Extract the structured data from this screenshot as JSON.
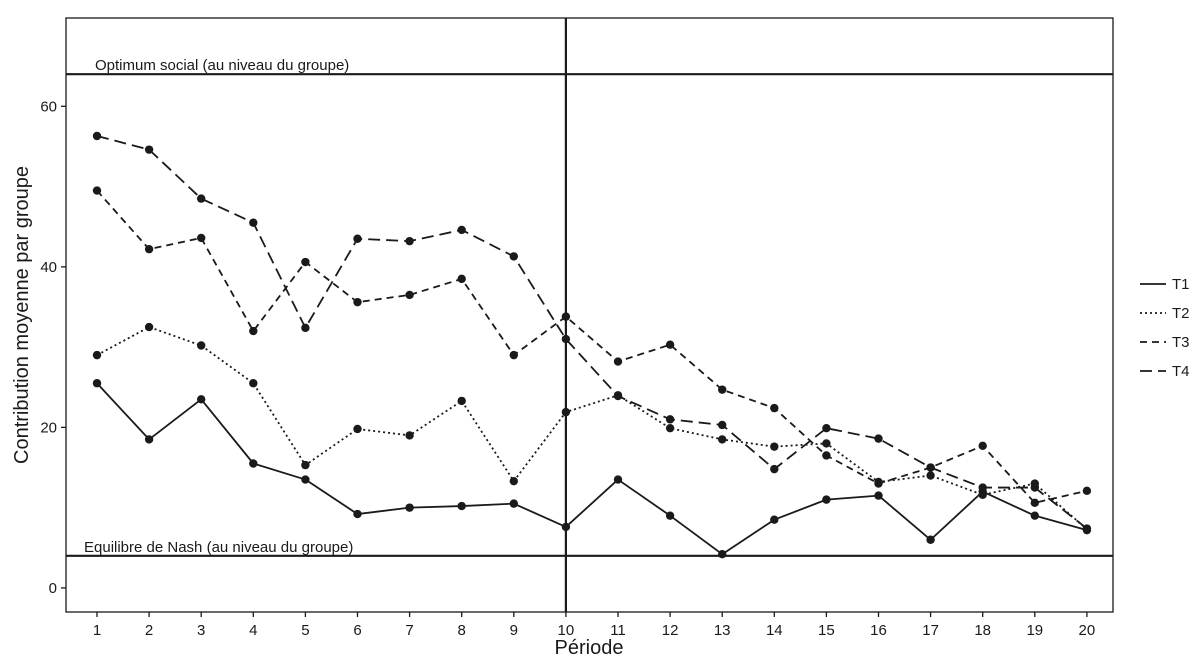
{
  "chart_data": {
    "type": "line",
    "xlabel": "Période",
    "ylabel": "Contribution moyenne par groupe",
    "categories": [
      "1",
      "2",
      "3",
      "4",
      "5",
      "6",
      "7",
      "8",
      "9",
      "10",
      "11",
      "12",
      "13",
      "14",
      "15",
      "16",
      "17",
      "18",
      "19",
      "20"
    ],
    "ylim": [
      -3,
      71
    ],
    "yticks": [
      0,
      20,
      40,
      60
    ],
    "ytick_labels": [
      "0",
      "20",
      "40",
      "60"
    ],
    "series": [
      {
        "name": "T1",
        "dash": "solid",
        "values": [
          25.5,
          18.5,
          23.5,
          15.5,
          13.5,
          9.2,
          10.0,
          10.2,
          10.5,
          7.6,
          13.5,
          9.0,
          4.2,
          8.5,
          11.0,
          11.5,
          6.0,
          12.0,
          9.0,
          7.2
        ]
      },
      {
        "name": "T2",
        "dash": "dotted",
        "values": [
          29.0,
          32.5,
          30.2,
          25.5,
          15.3,
          19.8,
          19.0,
          23.3,
          13.3,
          21.9,
          24.0,
          19.9,
          18.5,
          17.6,
          18.0,
          13.2,
          14.0,
          11.6,
          13.0,
          7.3
        ]
      },
      {
        "name": "T3",
        "dash": "dashed",
        "values": [
          49.5,
          42.2,
          43.6,
          32.0,
          40.6,
          35.6,
          36.5,
          38.5,
          29.0,
          33.8,
          28.2,
          30.3,
          24.7,
          22.4,
          16.5,
          13.0,
          15.0,
          17.7,
          10.6,
          12.1
        ]
      },
      {
        "name": "T4",
        "dash": "longdash",
        "values": [
          56.3,
          54.6,
          48.5,
          45.5,
          32.4,
          43.5,
          43.2,
          44.6,
          41.3,
          31.0,
          23.9,
          21.0,
          20.3,
          14.8,
          19.9,
          18.6,
          15.0,
          12.5,
          12.5,
          7.4
        ]
      }
    ],
    "reference_lines": [
      {
        "label": "Optimum social (au niveau du groupe)",
        "y": 64
      },
      {
        "label": "Equilibre de Nash (au niveau du groupe)",
        "y": 4
      }
    ],
    "vertical_line_x": "10",
    "legend": {
      "position": "right",
      "entries": [
        "T1",
        "T2",
        "T3",
        "T4"
      ]
    },
    "grid": false
  }
}
